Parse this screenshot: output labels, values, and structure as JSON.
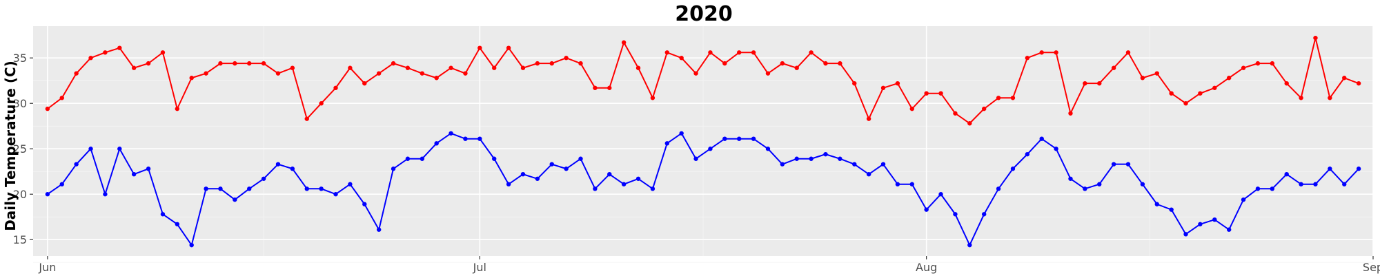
{
  "chart_data": {
    "type": "line",
    "title": "2020",
    "xlabel": "",
    "ylabel": "Daily Temperature (C)",
    "x_start": "2020-06-01",
    "x_end": "2020-08-31",
    "xlim": [
      "2020-05-31",
      "2020-09-01"
    ],
    "ylim": [
      13.2,
      38.5
    ],
    "x_ticks": [
      {
        "date": "2020-06-01",
        "label": "Jun"
      },
      {
        "date": "2020-07-01",
        "label": "Jul"
      },
      {
        "date": "2020-08-01",
        "label": "Aug"
      },
      {
        "date": "2020-09-01",
        "label": "Sep"
      }
    ],
    "y_ticks": [
      15,
      20,
      25,
      30,
      35
    ],
    "grid": true,
    "legend": "none",
    "series": [
      {
        "color": "#ff0000",
        "values": [
          29.4,
          30.6,
          33.3,
          35.0,
          35.6,
          36.1,
          33.9,
          34.4,
          35.6,
          29.4,
          32.8,
          33.3,
          34.4,
          34.4,
          34.4,
          34.4,
          33.3,
          33.9,
          28.3,
          30.0,
          31.7,
          33.9,
          32.2,
          33.3,
          34.4,
          33.9,
          33.3,
          32.8,
          33.9,
          33.3,
          36.1,
          33.9,
          36.1,
          33.9,
          34.4,
          34.4,
          35.0,
          34.4,
          31.7,
          31.7,
          36.7,
          33.9,
          30.6,
          35.6,
          35.0,
          33.3,
          35.6,
          34.4,
          35.6,
          35.6,
          33.3,
          34.4,
          33.9,
          35.6,
          34.4,
          34.4,
          32.2,
          28.3,
          31.7,
          32.2,
          29.4,
          31.1,
          31.1,
          28.9,
          27.8,
          29.4,
          30.6,
          30.6,
          35.0,
          35.6,
          35.6,
          28.9,
          32.2,
          32.2,
          33.9,
          35.6,
          32.8,
          33.3,
          31.1,
          30.0,
          31.1,
          31.7,
          32.8,
          33.9,
          34.4,
          34.4,
          32.2,
          30.6,
          37.2,
          30.6,
          32.8,
          32.2
        ]
      },
      {
        "color": "#0000ff",
        "values": [
          20.0,
          21.1,
          23.3,
          25.0,
          20.0,
          25.0,
          22.2,
          22.8,
          17.8,
          16.7,
          14.4,
          20.6,
          20.6,
          19.4,
          20.6,
          21.7,
          23.3,
          22.8,
          20.6,
          20.6,
          20.0,
          21.1,
          18.9,
          16.1,
          22.8,
          23.9,
          23.9,
          25.6,
          26.7,
          26.1,
          26.1,
          23.9,
          21.1,
          22.2,
          21.7,
          23.3,
          22.8,
          23.9,
          20.6,
          22.2,
          21.1,
          21.7,
          20.6,
          25.6,
          26.7,
          23.9,
          25.0,
          26.1,
          26.1,
          26.1,
          25.0,
          23.3,
          23.9,
          23.9,
          24.4,
          23.9,
          23.3,
          22.2,
          23.3,
          21.1,
          21.1,
          18.3,
          20.0,
          17.8,
          14.4,
          17.8,
          20.6,
          22.8,
          24.4,
          26.1,
          25.0,
          21.7,
          20.6,
          21.1,
          23.3,
          23.3,
          21.1,
          18.9,
          18.3,
          15.6,
          16.7,
          17.2,
          16.1,
          19.4,
          20.6,
          20.6,
          22.2,
          21.1,
          21.1,
          22.8,
          21.1,
          22.8
        ]
      }
    ]
  },
  "colors": {
    "panel_bg": "#ebebeb",
    "grid_major": "#ffffff",
    "grid_minor": "#f5f5f5",
    "axis_text": "#4d4d4d",
    "title": "#000000"
  }
}
